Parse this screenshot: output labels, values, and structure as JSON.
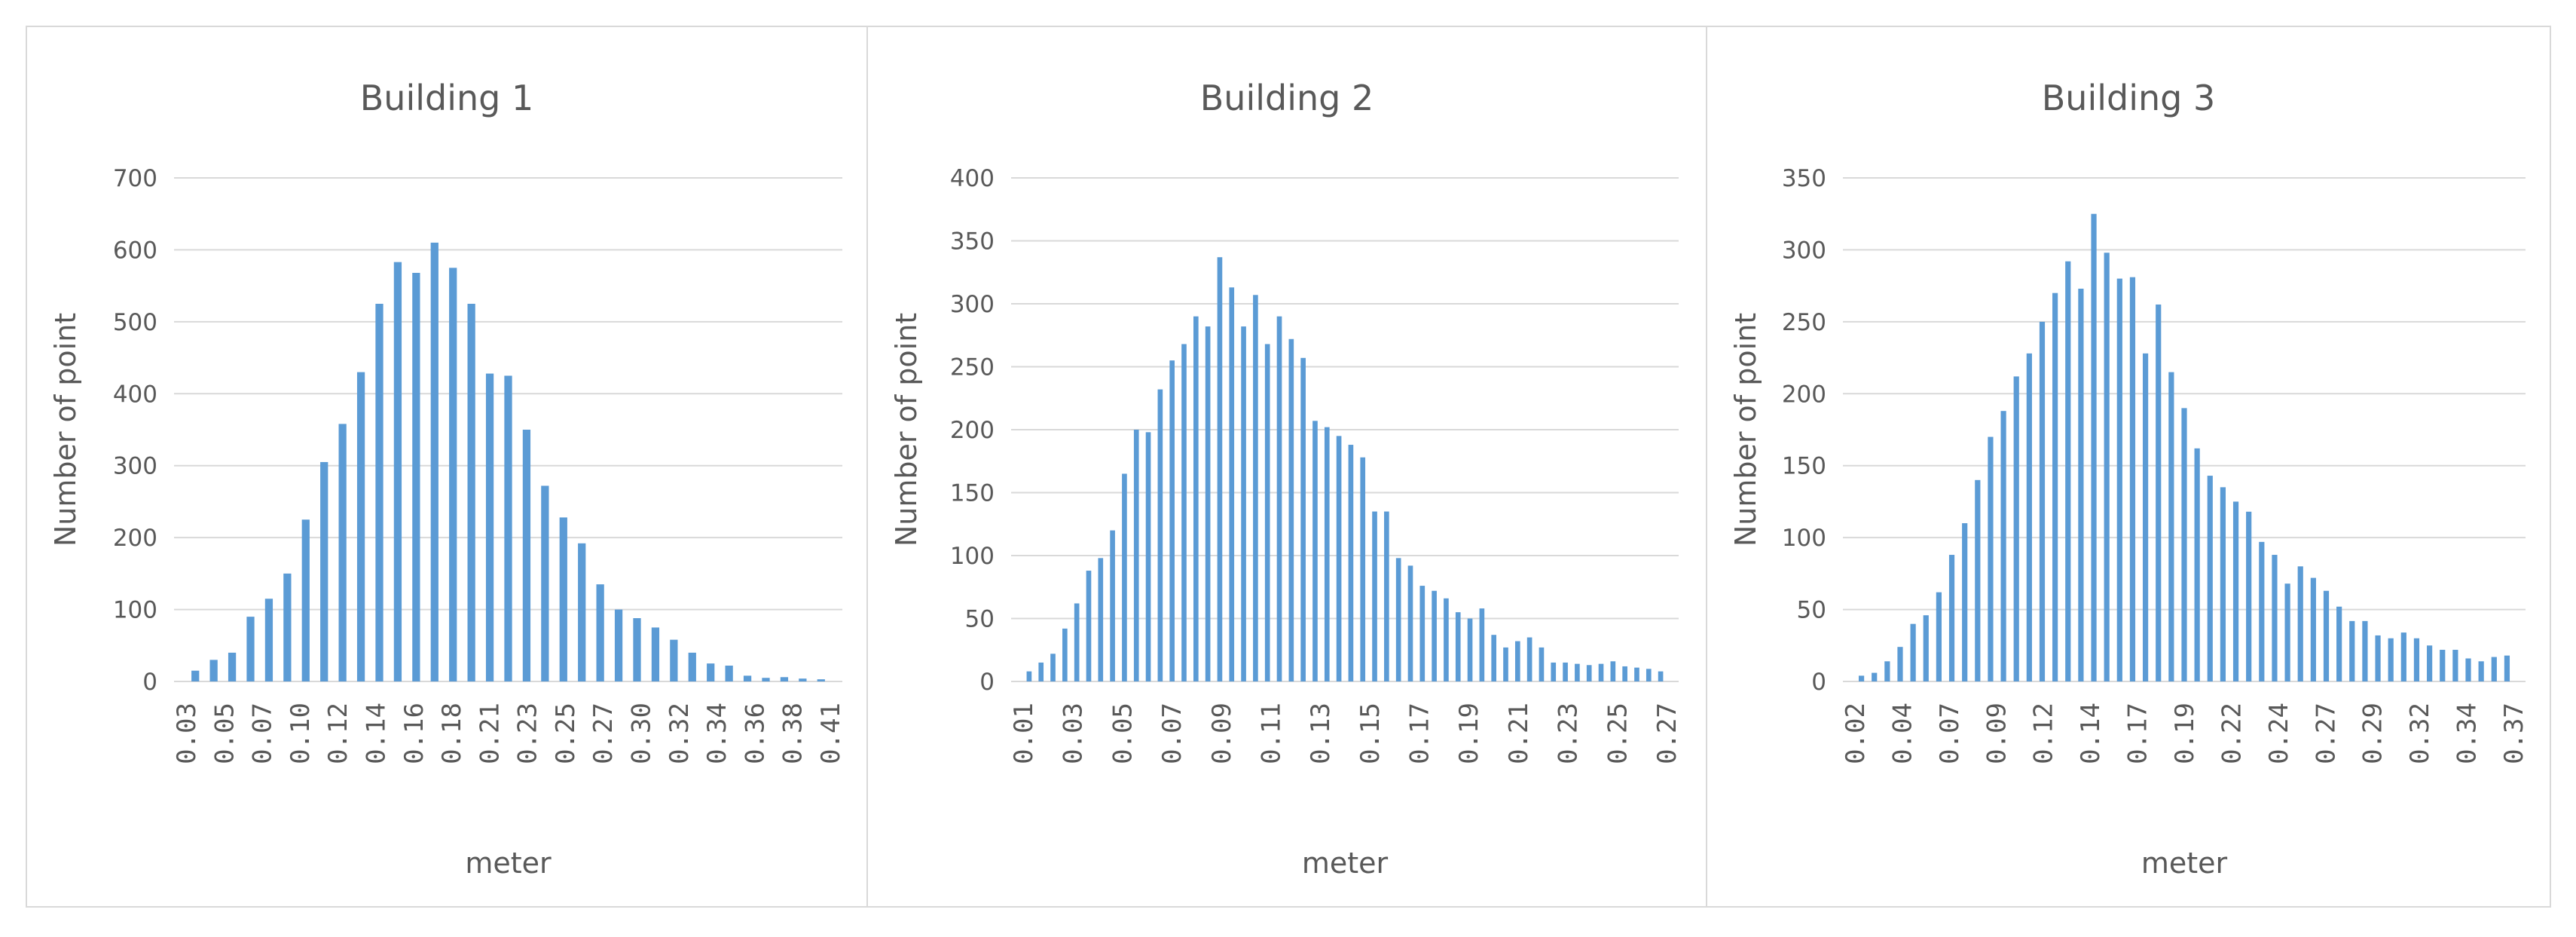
{
  "chart_data": [
    {
      "type": "bar",
      "title": "Building 1",
      "xlabel": "meter",
      "ylabel": "Number of point",
      "ylim": [
        0,
        700
      ],
      "yticks": [
        0,
        100,
        200,
        300,
        400,
        500,
        600,
        700
      ],
      "grid": true,
      "color": "#5b9bd5",
      "categories": [
        "0.03",
        "0.04",
        "0.05",
        "0.06",
        "0.07",
        "0.08",
        "0.10",
        "0.11",
        "0.12",
        "0.13",
        "0.14",
        "0.15",
        "0.16",
        "0.17",
        "0.18",
        "0.19",
        "0.21",
        "0.22",
        "0.23",
        "0.24",
        "0.25",
        "0.26",
        "0.27",
        "0.29",
        "0.30",
        "0.31",
        "0.32",
        "0.33",
        "0.34",
        "0.35",
        "0.36",
        "0.37",
        "0.38",
        "0.39",
        "0.41"
      ],
      "values": [
        15,
        30,
        40,
        90,
        115,
        150,
        225,
        305,
        358,
        430,
        525,
        583,
        568,
        610,
        575,
        525,
        428,
        425,
        350,
        272,
        228,
        192,
        135,
        100,
        88,
        75,
        58,
        40,
        25,
        22,
        8,
        5,
        6,
        4,
        3
      ],
      "xtick_labels": [
        "0.03",
        "0.05",
        "0.07",
        "0.10",
        "0.12",
        "0.14",
        "0.16",
        "0.18",
        "0.21",
        "0.23",
        "0.25",
        "0.27",
        "0.30",
        "0.32",
        "0.34",
        "0.36",
        "0.38",
        "0.41"
      ]
    },
    {
      "type": "bar",
      "title": "Building 2",
      "xlabel": "meter",
      "ylabel": "Number of point",
      "ylim": [
        0,
        400
      ],
      "yticks": [
        0,
        50,
        100,
        150,
        200,
        250,
        300,
        350,
        400
      ],
      "grid": true,
      "color": "#5b9bd5",
      "categories": [
        "0.01",
        "0.015",
        "0.02",
        "0.025",
        "0.03",
        "0.035",
        "0.04",
        "0.045",
        "0.05",
        "0.055",
        "0.06",
        "0.065",
        "0.07",
        "0.075",
        "0.08",
        "0.085",
        "0.09",
        "0.095",
        "0.10",
        "0.105",
        "0.11",
        "0.115",
        "0.12",
        "0.125",
        "0.13",
        "0.135",
        "0.14",
        "0.145",
        "0.15",
        "0.155",
        "0.16",
        "0.165",
        "0.17",
        "0.175",
        "0.18",
        "0.185",
        "0.19",
        "0.195",
        "0.20",
        "0.205",
        "0.21",
        "0.215",
        "0.22",
        "0.225",
        "0.23",
        "0.235",
        "0.24",
        "0.245",
        "0.25",
        "0.255",
        "0.26",
        "0.265",
        "0.27",
        "0.275"
      ],
      "values": [
        8,
        15,
        22,
        42,
        62,
        88,
        98,
        120,
        165,
        200,
        198,
        232,
        255,
        268,
        290,
        282,
        337,
        313,
        282,
        307,
        268,
        290,
        272,
        257,
        207,
        202,
        195,
        188,
        178,
        135,
        135,
        98,
        92,
        76,
        72,
        66,
        55,
        50,
        58,
        37,
        27,
        32,
        35,
        27,
        15,
        15,
        14,
        13,
        14,
        16,
        12,
        11,
        10,
        8
      ],
      "xtick_labels": [
        "0.01",
        "0.03",
        "0.05",
        "0.07",
        "0.09",
        "0.11",
        "0.13",
        "0.15",
        "0.17",
        "0.19",
        "0.21",
        "0.23",
        "0.25",
        "0.27"
      ]
    },
    {
      "type": "bar",
      "title": "Building 3",
      "xlabel": "meter",
      "ylabel": "Number of point",
      "ylim": [
        0,
        350
      ],
      "yticks": [
        0,
        50,
        100,
        150,
        200,
        250,
        300,
        350
      ],
      "grid": true,
      "color": "#5b9bd5",
      "categories": [
        "0.020",
        "0.027",
        "0.034",
        "0.041",
        "0.048",
        "0.055",
        "0.062",
        "0.069",
        "0.076",
        "0.083",
        "0.090",
        "0.097",
        "0.104",
        "0.111",
        "0.118",
        "0.125",
        "0.132",
        "0.139",
        "0.146",
        "0.153",
        "0.160",
        "0.167",
        "0.174",
        "0.181",
        "0.188",
        "0.195",
        "0.202",
        "0.209",
        "0.216",
        "0.223",
        "0.230",
        "0.237",
        "0.244",
        "0.251",
        "0.258",
        "0.265",
        "0.272",
        "0.279",
        "0.286",
        "0.293",
        "0.300",
        "0.307",
        "0.314",
        "0.321",
        "0.328",
        "0.335",
        "0.342",
        "0.349",
        "0.356",
        "0.363",
        "0.370"
      ],
      "values": [
        4,
        6,
        14,
        24,
        40,
        46,
        62,
        88,
        110,
        140,
        170,
        188,
        212,
        228,
        250,
        270,
        292,
        273,
        325,
        298,
        280,
        281,
        228,
        262,
        215,
        190,
        162,
        143,
        135,
        125,
        118,
        97,
        88,
        68,
        80,
        72,
        63,
        52,
        42,
        42,
        32,
        30,
        34,
        30,
        25,
        22,
        22,
        16,
        14,
        17,
        18
      ],
      "xtick_labels": [
        "0.02",
        "0.04",
        "0.07",
        "0.09",
        "0.12",
        "0.14",
        "0.17",
        "0.19",
        "0.22",
        "0.24",
        "0.27",
        "0.29",
        "0.32",
        "0.34",
        "0.37"
      ]
    }
  ]
}
